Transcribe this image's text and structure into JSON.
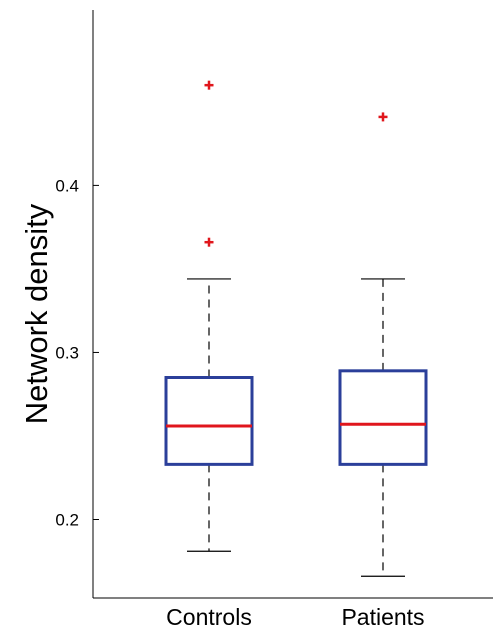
{
  "chart_data": {
    "type": "boxplot",
    "title": "",
    "xlabel": "",
    "ylabel": "Network density",
    "ylim": [
      0.153,
      0.505
    ],
    "yticks": [
      0.2,
      0.3,
      0.4
    ],
    "ytick_labels": [
      "0.2",
      "0.3",
      "0.4"
    ],
    "grid": false,
    "categories": [
      "Controls",
      "Patients"
    ],
    "boxes": [
      {
        "whisker_low": 0.181,
        "q1": 0.233,
        "median": 0.256,
        "q3": 0.285,
        "whisker_high": 0.344,
        "outliers": [
          0.366,
          0.46
        ]
      },
      {
        "whisker_low": 0.166,
        "q1": 0.233,
        "median": 0.257,
        "q3": 0.289,
        "whisker_high": 0.344,
        "outliers": [
          0.441
        ]
      }
    ],
    "colors": {
      "box": "#2b3f9a",
      "median": "#e0161c",
      "outlier": "#e0161c",
      "whisker": "#000000"
    }
  }
}
